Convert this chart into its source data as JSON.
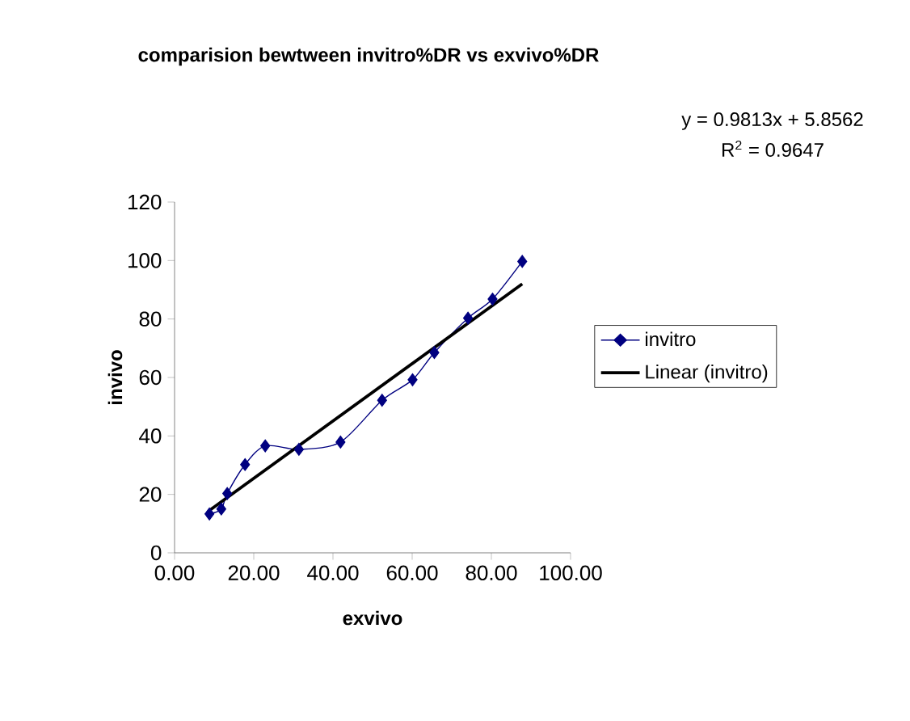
{
  "chart_data": {
    "type": "line",
    "title": "comparision bewtween invitro%DR vs exvivo%DR",
    "xlabel": "exvivo",
    "ylabel": "invivo",
    "annotations": [
      "y = 0.9813x + 5.8562",
      "R$^{2}$ = 0.9647"
    ],
    "xlim": [
      0,
      100
    ],
    "ylim": [
      0,
      120
    ],
    "xticks": [
      {
        "value": 0,
        "label": "0.00"
      },
      {
        "value": 20,
        "label": "20.00"
      },
      {
        "value": 40,
        "label": "40.00"
      },
      {
        "value": 60,
        "label": "60.00"
      },
      {
        "value": 80,
        "label": "80.00"
      },
      {
        "value": 100,
        "label": "100.00"
      }
    ],
    "yticks": [
      0,
      20,
      40,
      60,
      80,
      100,
      120
    ],
    "legend": "right",
    "series": [
      {
        "name": "invitro",
        "color": "#000080",
        "marker": "diamond",
        "x": [
          8.8,
          11.8,
          13.3,
          17.8,
          22.9,
          31.4,
          41.9,
          52.4,
          60.1,
          65.6,
          74.1,
          80.3,
          87.8
        ],
        "values": [
          13.3,
          15.0,
          20.3,
          30.2,
          36.6,
          35.4,
          37.9,
          52.2,
          59.2,
          68.5,
          80.3,
          86.8,
          99.7
        ]
      },
      {
        "name": "Linear (invitro)",
        "color": "#000000",
        "marker": "none",
        "x": [
          8.8,
          87.8
        ],
        "values": [
          14.5,
          92.0
        ]
      }
    ]
  }
}
